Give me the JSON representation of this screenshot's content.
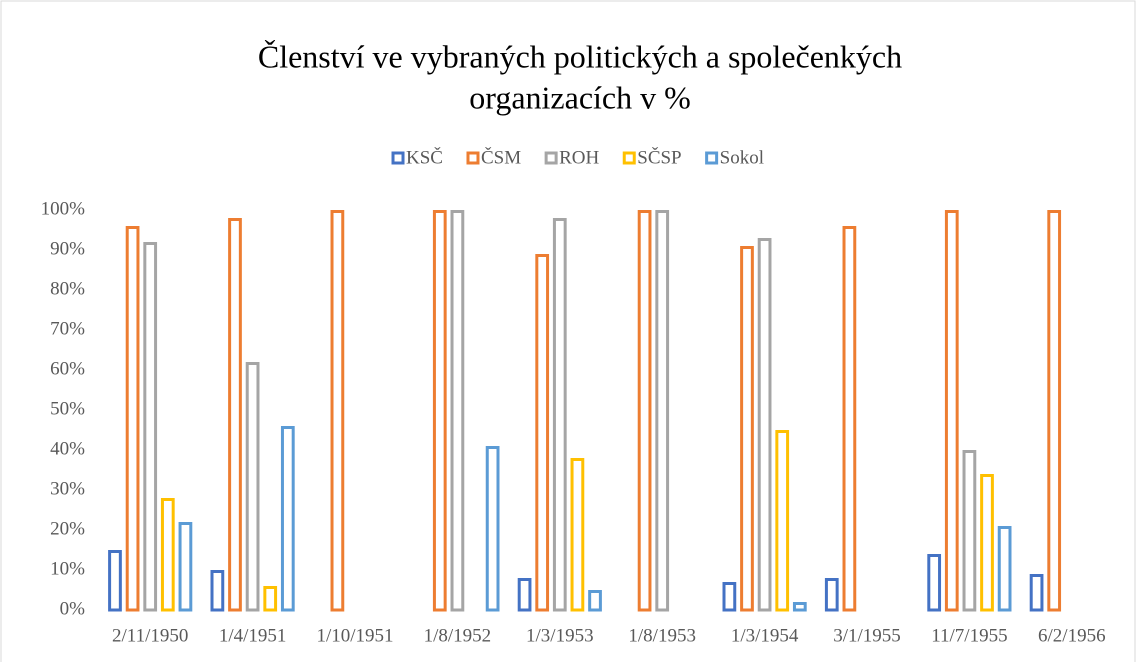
{
  "chart_data": {
    "type": "bar",
    "title": [
      "Členství ve vybraných politických a společenkých",
      "organizacích v %"
    ],
    "categories": [
      "2/11/1950",
      "1/4/1951",
      "1/10/1951",
      "1/8/1952",
      "1/3/1953",
      "1/8/1953",
      "1/3/1954",
      "3/1/1955",
      "11/7/1955",
      "6/2/1956"
    ],
    "series": [
      {
        "name": "KSČ",
        "color": "#4472c4",
        "values": [
          15,
          10,
          null,
          null,
          8,
          null,
          7,
          8,
          14,
          9
        ]
      },
      {
        "name": "ČSM",
        "color": "#ed7d31",
        "values": [
          96,
          98,
          100,
          100,
          89,
          100,
          91,
          96,
          100,
          100
        ]
      },
      {
        "name": "ROH",
        "color": "#a5a5a5",
        "values": [
          92,
          62,
          null,
          100,
          98,
          100,
          93,
          null,
          40,
          null
        ]
      },
      {
        "name": "SČSP",
        "color": "#ffc000",
        "values": [
          28,
          6,
          null,
          null,
          38,
          null,
          45,
          null,
          34,
          null
        ]
      },
      {
        "name": "Sokol",
        "color": "#5b9bd5",
        "values": [
          22,
          46,
          null,
          41,
          5,
          null,
          2,
          null,
          21,
          null
        ]
      }
    ],
    "ylim": [
      0,
      100
    ],
    "yticks": [
      {
        "value": 0,
        "label": "0%"
      },
      {
        "value": 10,
        "label": "10%"
      },
      {
        "value": 20,
        "label": "20%"
      },
      {
        "value": 30,
        "label": "30%"
      },
      {
        "value": 40,
        "label": "40%"
      },
      {
        "value": 50,
        "label": "50%"
      },
      {
        "value": 60,
        "label": "60%"
      },
      {
        "value": 70,
        "label": "70%"
      },
      {
        "value": 80,
        "label": "80%"
      },
      {
        "value": 90,
        "label": "90%"
      },
      {
        "value": 100,
        "label": "100%"
      }
    ],
    "legend": "top"
  }
}
